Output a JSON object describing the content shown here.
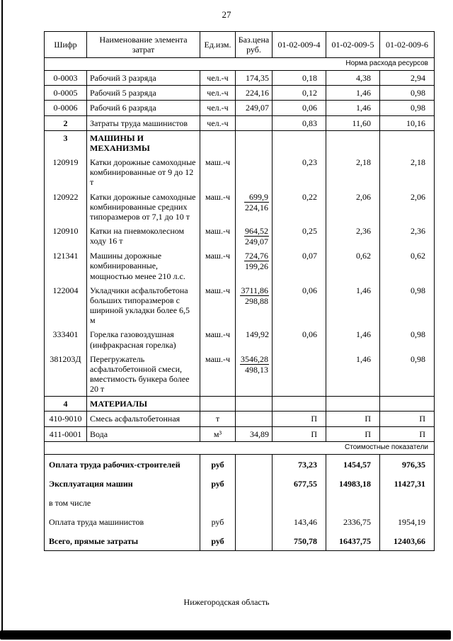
{
  "page": {
    "number": "27",
    "footer": "Нижегородская область"
  },
  "colors": {
    "ink": "#000000",
    "paper": "#ffffff"
  },
  "table": {
    "columns": [
      "Шифр",
      "Наименование элемента затрат",
      "Ед.изм.",
      "Баз.цена руб.",
      "01-02-009-4",
      "01-02-009-5",
      "01-02-009-6"
    ],
    "resource_norm_label": "Норма расхода ресурсов",
    "cost_indicators_label": "Стоимостные показатели",
    "rows": [
      {
        "code": "0-0003",
        "name": "Рабочий 3 разряда",
        "unit": "чел.-ч",
        "base": "174,35",
        "values": [
          "0,18",
          "4,38",
          "2,94"
        ],
        "sep": true
      },
      {
        "code": "0-0005",
        "name": "Рабочий 5 разряда",
        "unit": "чел.-ч",
        "base": "224,16",
        "values": [
          "0,12",
          "1,46",
          "0,98"
        ],
        "sep": true
      },
      {
        "code": "0-0006",
        "name": "Рабочий 6 разряда",
        "unit": "чел.-ч",
        "base": "249,07",
        "values": [
          "0,06",
          "1,46",
          "0,98"
        ],
        "sep": true
      },
      {
        "code": "2",
        "name": "Затраты труда машинистов",
        "unit": "чел.-ч",
        "base": "",
        "values": [
          "0,83",
          "11,60",
          "10,16"
        ],
        "sep": true,
        "code_bold": true
      },
      {
        "code": "3",
        "name": "МАШИНЫ И МЕХАНИЗМЫ",
        "unit": "",
        "base": "",
        "values": [
          "",
          "",
          ""
        ],
        "code_bold": true,
        "name_bold": true
      },
      {
        "code": "120919",
        "name": "Катки дорожные самоходные комбинированные от 9 до 12 т",
        "unit": "маш.-ч",
        "base": "",
        "values": [
          "0,23",
          "2,18",
          "2,18"
        ]
      },
      {
        "code": "120922",
        "name": "Катки дорожные самоходные комбинированные средних типоразмеров от 7,1 до 10 т",
        "unit": "маш.-ч",
        "base_num": "699,9",
        "base_den": "224,16",
        "values": [
          "0,22",
          "2,06",
          "2,06"
        ]
      },
      {
        "code": "120910",
        "name": "Катки на пневмоколесном ходу 16 т",
        "unit": "маш.-ч",
        "base_num": "964,52",
        "base_den": "249,07",
        "values": [
          "0,25",
          "2,36",
          "2,36"
        ]
      },
      {
        "code": "121341",
        "name": "Машины дорожные комбинированные, мощностью менее 210 л.с.",
        "unit": "маш.-ч",
        "base_num": "724,76",
        "base_den": "199,26",
        "values": [
          "0,07",
          "0,62",
          "0,62"
        ]
      },
      {
        "code": "122004",
        "name": "Укладчики асфальтобетона больших типоразмеров с шириной укладки более 6,5 м",
        "unit": "маш.-ч",
        "base_num": "3711,86",
        "base_den": "298,88",
        "values": [
          "0,06",
          "1,46",
          "0,98"
        ]
      },
      {
        "code": "333401",
        "name": "Горелка газовоздушная (инфракрасная горелка)",
        "unit": "маш.-ч",
        "base": "149,92",
        "values": [
          "0,06",
          "1,46",
          "0,98"
        ]
      },
      {
        "code": "381203Д",
        "name": "Перегружатель асфальтобетонной смеси, вместимость бункера более 20 т",
        "unit": "маш.-ч",
        "base_num": "3546,28",
        "base_den": "498,13",
        "values": [
          "",
          "1,46",
          "0,98"
        ],
        "sep": true
      },
      {
        "code": "4",
        "name": "МАТЕРИАЛЫ",
        "unit": "",
        "base": "",
        "values": [
          "",
          "",
          ""
        ],
        "sep": true,
        "code_bold": true,
        "name_bold": true
      },
      {
        "code": "410-9010",
        "name": "Смесь асфальтобетонная",
        "unit": "т",
        "base": "",
        "values": [
          "П",
          "П",
          "П"
        ],
        "sep": true
      },
      {
        "code": "411-0001",
        "name": "Вода",
        "unit": "м³",
        "base": "34,89",
        "values": [
          "П",
          "П",
          "П"
        ],
        "sep": true
      }
    ],
    "summary_rows": [
      {
        "name": "Оплата труда рабочих-строителей",
        "unit": "руб",
        "values": [
          "73,23",
          "1454,57",
          "976,35"
        ],
        "bold": true
      },
      {
        "name": "Эксплуатация машин",
        "unit": "руб",
        "values": [
          "677,55",
          "14983,18",
          "11427,31"
        ],
        "bold": true
      },
      {
        "name": "в том числе",
        "unit": "",
        "values": [
          "",
          "",
          ""
        ]
      },
      {
        "name": "Оплата труда машинистов",
        "unit": "руб",
        "values": [
          "143,46",
          "2336,75",
          "1954,19"
        ]
      },
      {
        "name": "Всего, прямые затраты",
        "unit": "руб",
        "values": [
          "750,78",
          "16437,75",
          "12403,66"
        ],
        "bold": true
      }
    ]
  }
}
